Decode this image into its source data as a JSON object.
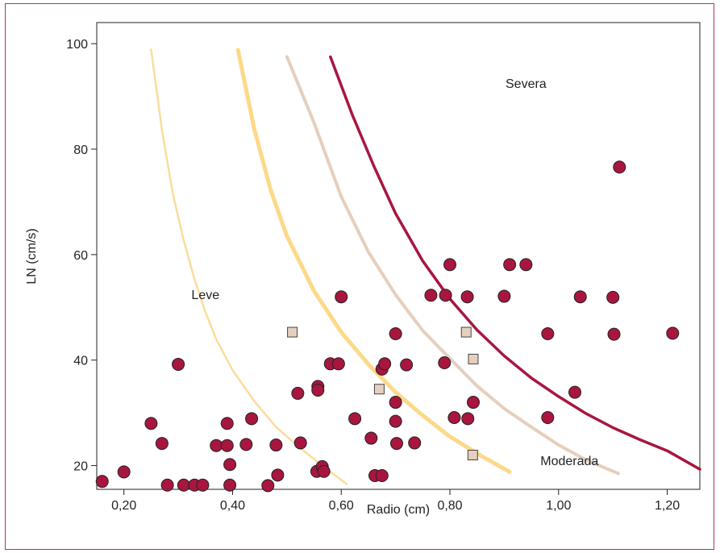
{
  "chart_data": {
    "type": "scatter",
    "title": "",
    "xlabel": "Radio (cm)",
    "ylabel": "LN (cm/s)",
    "xlim": [
      0.15,
      1.26
    ],
    "ylim": [
      15.5,
      104
    ],
    "x_ticks": [
      {
        "value": 0.2,
        "label": "0,20"
      },
      {
        "value": 0.4,
        "label": "0,40"
      },
      {
        "value": 0.6,
        "label": "0,60"
      },
      {
        "value": 0.8,
        "label": "0,80"
      },
      {
        "value": 1.0,
        "label": "1,00"
      },
      {
        "value": 1.2,
        "label": "1,20"
      }
    ],
    "y_ticks": [
      {
        "value": 20,
        "label": "20"
      },
      {
        "value": 40,
        "label": "40"
      },
      {
        "value": 60,
        "label": "60"
      },
      {
        "value": 80,
        "label": "80"
      },
      {
        "value": 100,
        "label": "100"
      }
    ],
    "grid": false,
    "annotations": [
      {
        "text": "Severa",
        "x": 0.94,
        "y": 92.5
      },
      {
        "text": "Leve",
        "x": 0.35,
        "y": 52.5
      },
      {
        "text": "Moderada",
        "x": 1.02,
        "y": 21
      }
    ],
    "series": [
      {
        "marker": "circle",
        "color": "#a8163f",
        "points": [
          [
            0.16,
            17
          ],
          [
            0.2,
            18.8
          ],
          [
            0.25,
            28
          ],
          [
            0.27,
            24.2
          ],
          [
            0.28,
            16.3
          ],
          [
            0.3,
            39.2
          ],
          [
            0.31,
            16.3
          ],
          [
            0.33,
            16.3
          ],
          [
            0.345,
            16.3
          ],
          [
            0.37,
            23.8
          ],
          [
            0.39,
            28
          ],
          [
            0.39,
            23.8
          ],
          [
            0.395,
            20.2
          ],
          [
            0.395,
            16.3
          ],
          [
            0.425,
            24
          ],
          [
            0.435,
            28.9
          ],
          [
            0.465,
            16.2
          ],
          [
            0.48,
            23.9
          ],
          [
            0.483,
            18.2
          ],
          [
            0.52,
            33.7
          ],
          [
            0.525,
            24.3
          ],
          [
            0.555,
            18.9
          ],
          [
            0.557,
            35
          ],
          [
            0.557,
            34.3
          ],
          [
            0.565,
            19.8
          ],
          [
            0.568,
            18.9
          ],
          [
            0.58,
            39.3
          ],
          [
            0.595,
            39.3
          ],
          [
            0.6,
            52
          ],
          [
            0.625,
            28.9
          ],
          [
            0.655,
            25.2
          ],
          [
            0.662,
            18.1
          ],
          [
            0.675,
            18.1
          ],
          [
            0.675,
            38.3
          ],
          [
            0.68,
            39.3
          ],
          [
            0.7,
            45
          ],
          [
            0.7,
            32
          ],
          [
            0.7,
            28.4
          ],
          [
            0.702,
            24.2
          ],
          [
            0.72,
            39.1
          ],
          [
            0.735,
            24.3
          ],
          [
            0.765,
            52.3
          ],
          [
            0.79,
            39.5
          ],
          [
            0.792,
            52.3
          ],
          [
            0.8,
            58.1
          ],
          [
            0.808,
            29.1
          ],
          [
            0.832,
            52
          ],
          [
            0.833,
            28.9
          ],
          [
            0.843,
            32
          ],
          [
            0.9,
            52.1
          ],
          [
            0.91,
            58.1
          ],
          [
            0.94,
            58.1
          ],
          [
            0.98,
            45
          ],
          [
            0.98,
            29.1
          ],
          [
            1.03,
            33.9
          ],
          [
            1.04,
            52
          ],
          [
            1.1,
            51.9
          ],
          [
            1.102,
            44.9
          ],
          [
            1.112,
            76.6
          ],
          [
            1.21,
            45.1
          ]
        ]
      },
      {
        "marker": "square",
        "color": "#e6cfbc",
        "points": [
          [
            0.51,
            45.3
          ],
          [
            0.67,
            34.5
          ],
          [
            0.83,
            45.3
          ],
          [
            0.843,
            40.2
          ],
          [
            0.842,
            22
          ]
        ]
      }
    ],
    "curves": [
      {
        "color": "#fbdc9c",
        "width": 2.5,
        "points": [
          [
            0.25,
            98.9
          ],
          [
            0.27,
            83.6
          ],
          [
            0.29,
            71.6
          ],
          [
            0.31,
            62.7
          ],
          [
            0.33,
            55.3
          ],
          [
            0.35,
            49.1
          ],
          [
            0.37,
            43.9
          ],
          [
            0.4,
            38.1
          ],
          [
            0.44,
            32.2
          ],
          [
            0.48,
            27.3
          ],
          [
            0.52,
            23.7
          ],
          [
            0.56,
            20.4
          ],
          [
            0.61,
            16.5
          ]
        ]
      },
      {
        "color": "#fcd989",
        "width": 5,
        "points": [
          [
            0.41,
            98.8
          ],
          [
            0.44,
            83.8
          ],
          [
            0.47,
            72.3
          ],
          [
            0.5,
            63.5
          ],
          [
            0.55,
            53.1
          ],
          [
            0.6,
            45.3
          ],
          [
            0.65,
            39.2
          ],
          [
            0.7,
            33.9
          ],
          [
            0.75,
            29.5
          ],
          [
            0.8,
            25.5
          ],
          [
            0.85,
            22.3
          ],
          [
            0.91,
            18.8
          ]
        ]
      },
      {
        "color": "#e5cfbd",
        "width": 4,
        "points": [
          [
            0.5,
            97.5
          ],
          [
            0.55,
            85
          ],
          [
            0.6,
            71
          ],
          [
            0.65,
            60.5
          ],
          [
            0.7,
            52.4
          ],
          [
            0.75,
            45.6
          ],
          [
            0.8,
            40.3
          ],
          [
            0.85,
            35.1
          ],
          [
            0.9,
            30.8
          ],
          [
            0.95,
            27.3
          ],
          [
            1.0,
            23.9
          ],
          [
            1.05,
            21.1
          ],
          [
            1.11,
            18.5
          ]
        ]
      },
      {
        "color": "#a8163f",
        "width": 3.5,
        "points": [
          [
            0.58,
            97.5
          ],
          [
            0.62,
            86.6
          ],
          [
            0.66,
            76.8
          ],
          [
            0.7,
            67.8
          ],
          [
            0.75,
            58.8
          ],
          [
            0.8,
            51.6
          ],
          [
            0.85,
            45.7
          ],
          [
            0.9,
            40.8
          ],
          [
            0.95,
            36.6
          ],
          [
            1.0,
            33.1
          ],
          [
            1.05,
            29.9
          ],
          [
            1.1,
            27.2
          ],
          [
            1.15,
            24.9
          ],
          [
            1.2,
            22.8
          ],
          [
            1.26,
            19.3
          ]
        ]
      }
    ]
  }
}
